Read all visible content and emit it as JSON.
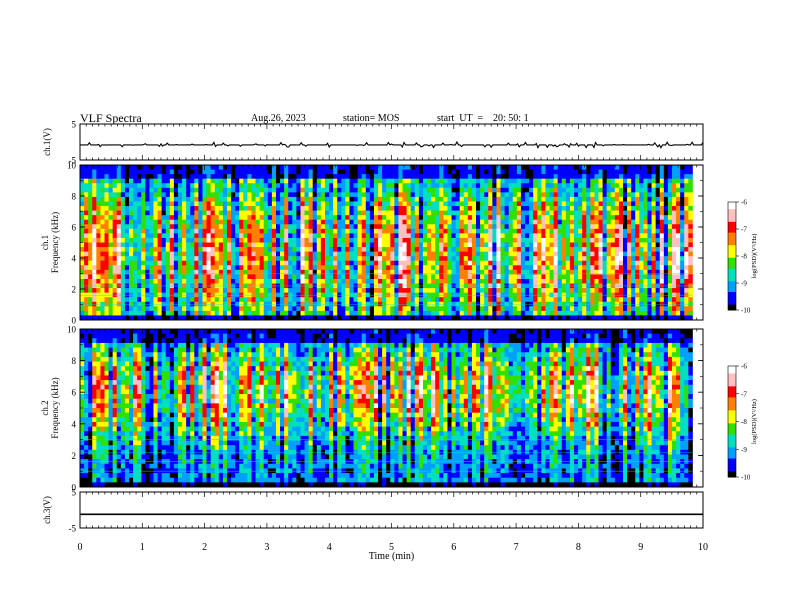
{
  "header": {
    "title": "VLF Spectra",
    "date": "Aug.26, 2023",
    "station": "station= MOS",
    "start": "start  UT  =    20: 50: 1"
  },
  "chart_data": [
    {
      "type": "line",
      "panel": "ch1-waveform",
      "ylabel": "ch.1(V)",
      "ylim": [
        -5,
        5
      ],
      "yticks": [
        "5",
        "-5"
      ],
      "baseline": -0.8,
      "xlim": [
        0,
        10
      ]
    },
    {
      "type": "heatmap",
      "panel": "ch1-spectrogram",
      "ylabel_top": "ch.1",
      "ylabel": "Frequency (kHz)",
      "ylim": [
        0,
        10
      ],
      "yticks": [
        "0",
        "2",
        "4",
        "6",
        "8",
        "10"
      ],
      "xlim": [
        0,
        9.83
      ],
      "colorbar": {
        "label": "log(PSD)(V²/Hz)",
        "range": [
          -10,
          -6
        ],
        "ticks": [
          "-6",
          "-7",
          "-8",
          "-9",
          "-10"
        ]
      }
    },
    {
      "type": "heatmap",
      "panel": "ch2-spectrogram",
      "ylabel_top": "ch.2",
      "ylabel": "Frequency (kHz)",
      "ylim": [
        0,
        10
      ],
      "yticks": [
        "0",
        "2",
        "4",
        "6",
        "8",
        "10"
      ],
      "xlim": [
        0,
        9.83
      ],
      "colorbar": {
        "label": "log(PSD)(V²/Hz)",
        "range": [
          -10,
          -6
        ],
        "ticks": [
          "-6",
          "-7",
          "-8",
          "-9",
          "-10"
        ]
      }
    },
    {
      "type": "line",
      "panel": "ch3-waveform",
      "ylabel": "ch.3(V)",
      "ylim": [
        -5,
        5
      ],
      "yticks": [
        "5",
        "-5"
      ],
      "baseline": -1.2,
      "xlim": [
        0,
        10
      ]
    }
  ],
  "xaxis": {
    "label": "Time (min)",
    "range": [
      0,
      10
    ],
    "ticks": [
      "0",
      "1",
      "2",
      "3",
      "4",
      "5",
      "6",
      "7",
      "8",
      "9",
      "10"
    ]
  },
  "colors": {
    "scale": [
      "#000000",
      "#0000ff",
      "#00a0ff",
      "#00e0c0",
      "#30e000",
      "#ffff00",
      "#ff8000",
      "#ff0000",
      "#ffc0c0",
      "#ffffff"
    ]
  }
}
